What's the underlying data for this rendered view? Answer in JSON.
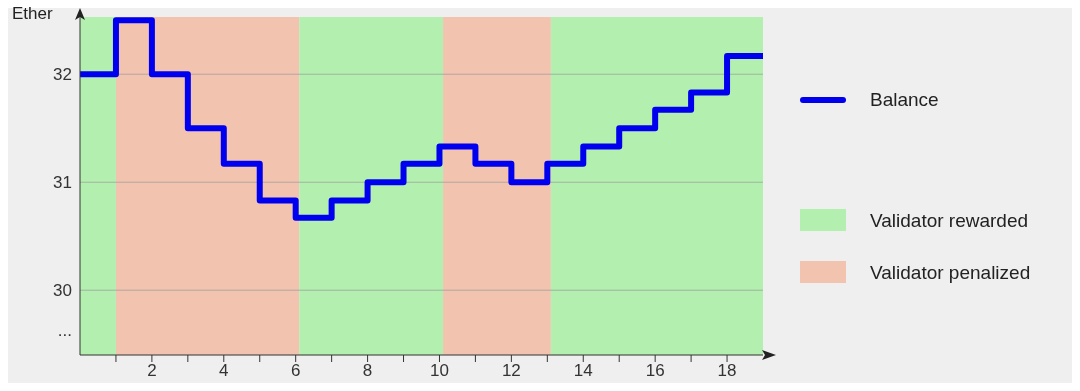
{
  "chart_data": {
    "type": "step",
    "ylabel": "Ether",
    "x": [
      0,
      1,
      2,
      3,
      4,
      5,
      6,
      7,
      8,
      9,
      10,
      11,
      12,
      13,
      14,
      15,
      16,
      17,
      18,
      19
    ],
    "series": [
      {
        "name": "Balance",
        "color": "#0000ee",
        "values": [
          32,
          32.5,
          32,
          31.5,
          31.17,
          30.83,
          30.67,
          30.83,
          31,
          31.17,
          31.33,
          31.17,
          31,
          31.17,
          31.33,
          31.5,
          31.67,
          31.83,
          32.17,
          32.17
        ]
      }
    ],
    "xlim": [
      0,
      19
    ],
    "xticks": [
      {
        "value": 1,
        "label": null
      },
      2,
      {
        "value": 3,
        "label": null
      },
      4,
      {
        "value": 5,
        "label": null
      },
      6,
      {
        "value": 7,
        "label": null
      },
      8,
      {
        "value": 9,
        "label": null
      },
      10,
      {
        "value": 11,
        "label": null
      },
      12,
      {
        "value": 13,
        "label": null
      },
      14,
      {
        "value": 15,
        "label": null
      },
      16,
      {
        "value": 17,
        "label": null
      },
      18
    ],
    "ylim": [
      29.4,
      32.53
    ],
    "yticks": [
      {
        "value": 29.63,
        "label": "..."
      },
      30,
      31,
      32
    ],
    "bands": [
      {
        "axis": "x",
        "from": 0,
        "to": 1,
        "color": "#b3f0b0"
      },
      {
        "axis": "x",
        "from": 1,
        "to": 6.1,
        "color": "#f2c4b0"
      },
      {
        "axis": "x",
        "from": 6.1,
        "to": 10.1,
        "color": "#b3f0b0"
      },
      {
        "axis": "x",
        "from": 10.1,
        "to": 13.1,
        "color": "#f2c4b0"
      },
      {
        "axis": "x",
        "from": 13.1,
        "to": 19,
        "color": "#b3f0b0"
      }
    ],
    "annotations": [
      "Validator rewarded",
      "Validator penalized"
    ],
    "grid": "y",
    "legend": "right",
    "line_style": "solid"
  }
}
